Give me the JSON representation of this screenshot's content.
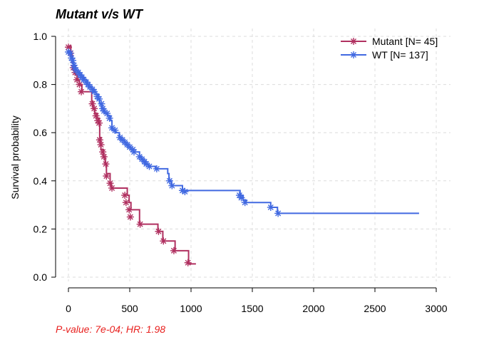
{
  "chart_data": {
    "type": "line",
    "subtype": "kaplan-meier",
    "title": "Mutant v/s WT",
    "xlabel": "",
    "ylabel": "Survival probability",
    "xlim": [
      0,
      3000
    ],
    "ylim": [
      0,
      1.0
    ],
    "x_ticks": [
      0,
      500,
      1000,
      1500,
      2000,
      2500,
      3000
    ],
    "y_ticks": [
      0.0,
      0.2,
      0.4,
      0.6,
      0.8,
      1.0
    ],
    "x_tick_labels": [
      "0",
      "500",
      "1000",
      "1500",
      "2000",
      "2500",
      "3000"
    ],
    "y_tick_labels": [
      "0.0",
      "0.2",
      "0.4",
      "0.6",
      "0.8",
      "1.0"
    ],
    "grid": true,
    "legend_position": "top-right",
    "footnote": "P-value: 7e-04; HR: 1.98",
    "series": [
      {
        "name": "Mutant [N= 45]",
        "color": "#b03060",
        "steps": [
          [
            0,
            0.96
          ],
          [
            20,
            0.93
          ],
          [
            30,
            0.89
          ],
          [
            40,
            0.86
          ],
          [
            55,
            0.84
          ],
          [
            70,
            0.82
          ],
          [
            90,
            0.8
          ],
          [
            110,
            0.77
          ],
          [
            190,
            0.73
          ],
          [
            200,
            0.7
          ],
          [
            215,
            0.68
          ],
          [
            235,
            0.66
          ],
          [
            250,
            0.64
          ],
          [
            255,
            0.58
          ],
          [
            265,
            0.53
          ],
          [
            285,
            0.5
          ],
          [
            300,
            0.47
          ],
          [
            310,
            0.43
          ],
          [
            340,
            0.39
          ],
          [
            350,
            0.37
          ],
          [
            480,
            0.34
          ],
          [
            495,
            0.31
          ],
          [
            510,
            0.28
          ],
          [
            580,
            0.22
          ],
          [
            730,
            0.19
          ],
          [
            770,
            0.15
          ],
          [
            870,
            0.11
          ],
          [
            980,
            0.055
          ],
          [
            1040,
            0.055
          ]
        ],
        "censor": [
          [
            0,
            0.955
          ],
          [
            18,
            0.93
          ],
          [
            40,
            0.87
          ],
          [
            55,
            0.85
          ],
          [
            70,
            0.82
          ],
          [
            90,
            0.8
          ],
          [
            105,
            0.77
          ],
          [
            195,
            0.72
          ],
          [
            210,
            0.7
          ],
          [
            225,
            0.67
          ],
          [
            240,
            0.65
          ],
          [
            250,
            0.64
          ],
          [
            255,
            0.57
          ],
          [
            265,
            0.55
          ],
          [
            280,
            0.52
          ],
          [
            290,
            0.5
          ],
          [
            305,
            0.47
          ],
          [
            310,
            0.42
          ],
          [
            340,
            0.39
          ],
          [
            355,
            0.37
          ],
          [
            460,
            0.34
          ],
          [
            470,
            0.31
          ],
          [
            495,
            0.28
          ],
          [
            505,
            0.25
          ],
          [
            585,
            0.22
          ],
          [
            735,
            0.19
          ],
          [
            775,
            0.15
          ],
          [
            860,
            0.11
          ],
          [
            975,
            0.06
          ]
        ]
      },
      {
        "name": "WT [N= 137]",
        "color": "#4169e1",
        "steps": [
          [
            0,
            0.94
          ],
          [
            15,
            0.93
          ],
          [
            25,
            0.91
          ],
          [
            35,
            0.89
          ],
          [
            45,
            0.87
          ],
          [
            60,
            0.86
          ],
          [
            80,
            0.85
          ],
          [
            95,
            0.84
          ],
          [
            110,
            0.83
          ],
          [
            130,
            0.82
          ],
          [
            150,
            0.8
          ],
          [
            170,
            0.79
          ],
          [
            190,
            0.78
          ],
          [
            210,
            0.77
          ],
          [
            225,
            0.76
          ],
          [
            245,
            0.74
          ],
          [
            255,
            0.72
          ],
          [
            270,
            0.7
          ],
          [
            290,
            0.68
          ],
          [
            320,
            0.67
          ],
          [
            345,
            0.65
          ],
          [
            355,
            0.61
          ],
          [
            380,
            0.6
          ],
          [
            415,
            0.58
          ],
          [
            430,
            0.57
          ],
          [
            455,
            0.56
          ],
          [
            470,
            0.55
          ],
          [
            490,
            0.54
          ],
          [
            510,
            0.53
          ],
          [
            530,
            0.52
          ],
          [
            580,
            0.5
          ],
          [
            595,
            0.49
          ],
          [
            610,
            0.48
          ],
          [
            625,
            0.47
          ],
          [
            650,
            0.46
          ],
          [
            710,
            0.45
          ],
          [
            810,
            0.43
          ],
          [
            820,
            0.4
          ],
          [
            840,
            0.38
          ],
          [
            930,
            0.36
          ],
          [
            1395,
            0.36
          ],
          [
            1400,
            0.34
          ],
          [
            1425,
            0.32
          ],
          [
            1450,
            0.31
          ],
          [
            1640,
            0.31
          ],
          [
            1650,
            0.29
          ],
          [
            1705,
            0.265
          ],
          [
            2860,
            0.265
          ]
        ],
        "censor": [
          [
            0,
            0.935
          ],
          [
            15,
            0.93
          ],
          [
            25,
            0.91
          ],
          [
            35,
            0.9
          ],
          [
            45,
            0.88
          ],
          [
            50,
            0.87
          ],
          [
            60,
            0.86
          ],
          [
            80,
            0.85
          ],
          [
            95,
            0.84
          ],
          [
            110,
            0.83
          ],
          [
            125,
            0.82
          ],
          [
            145,
            0.81
          ],
          [
            160,
            0.8
          ],
          [
            175,
            0.79
          ],
          [
            195,
            0.78
          ],
          [
            210,
            0.77
          ],
          [
            235,
            0.75
          ],
          [
            250,
            0.74
          ],
          [
            270,
            0.72
          ],
          [
            280,
            0.7
          ],
          [
            290,
            0.69
          ],
          [
            315,
            0.68
          ],
          [
            335,
            0.66
          ],
          [
            355,
            0.62
          ],
          [
            380,
            0.61
          ],
          [
            420,
            0.58
          ],
          [
            440,
            0.57
          ],
          [
            460,
            0.56
          ],
          [
            480,
            0.55
          ],
          [
            500,
            0.54
          ],
          [
            525,
            0.53
          ],
          [
            535,
            0.52
          ],
          [
            580,
            0.5
          ],
          [
            600,
            0.49
          ],
          [
            620,
            0.48
          ],
          [
            635,
            0.47
          ],
          [
            660,
            0.46
          ],
          [
            720,
            0.45
          ],
          [
            825,
            0.4
          ],
          [
            845,
            0.38
          ],
          [
            930,
            0.36
          ],
          [
            950,
            0.355
          ],
          [
            1395,
            0.34
          ],
          [
            1410,
            0.33
          ],
          [
            1440,
            0.31
          ],
          [
            1650,
            0.29
          ],
          [
            1710,
            0.265
          ]
        ]
      }
    ]
  }
}
